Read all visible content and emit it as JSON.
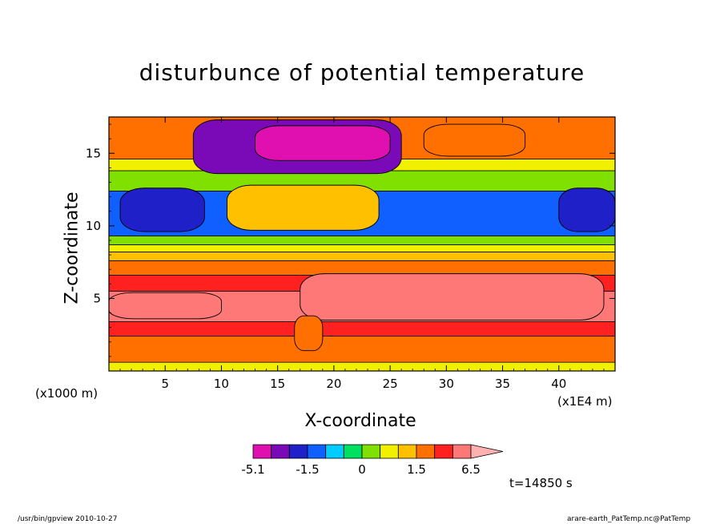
{
  "chart_data": {
    "type": "heatmap",
    "title": "disturbunce of potential temperature",
    "xlabel": "X-coordinate",
    "ylabel": "Z-coordinate",
    "x_unit_label": "(x1E4 m)",
    "y_unit_label": "(x1000 m)",
    "xlim": [
      0,
      45
    ],
    "ylim": [
      0,
      17.5
    ],
    "x_ticks": [
      "5",
      "10",
      "15",
      "20",
      "25",
      "30",
      "35",
      "40"
    ],
    "y_ticks": [
      "5",
      "10",
      "15"
    ],
    "x_tick_values": [
      5,
      10,
      15,
      20,
      25,
      30,
      35,
      40
    ],
    "y_tick_values": [
      5,
      10,
      15
    ],
    "colorbar": {
      "labels": [
        "-5.1",
        "-1.5",
        "0",
        "1.5",
        "6.5"
      ],
      "label_values": [
        -5.1,
        -1.5,
        0,
        1.5,
        6.5
      ],
      "levels": [
        -5.1,
        -3.6,
        -2.5,
        -1.5,
        -1.0,
        -0.5,
        0,
        0.5,
        1.0,
        1.5,
        3.0,
        4.8,
        6.5
      ],
      "colors": [
        "#e010b0",
        "#7a0ab8",
        "#2020c8",
        "#1060ff",
        "#00ccff",
        "#00e060",
        "#80e000",
        "#f0f000",
        "#ffc000",
        "#ff7000",
        "#ff2020",
        "#ff7878",
        "#ffb0b0"
      ],
      "extend": "max"
    },
    "bands": [
      {
        "z0": 0,
        "z1": 0.6,
        "value": 0.7
      },
      {
        "z0": 0.6,
        "z1": 2.4,
        "value": 2.2
      },
      {
        "z0": 2.4,
        "z1": 3.4,
        "value": 3.8
      },
      {
        "z0": 3.4,
        "z1": 5.5,
        "value": 5.2
      },
      {
        "z0": 5.5,
        "z1": 6.6,
        "value": 3.8
      },
      {
        "z0": 6.6,
        "z1": 7.6,
        "value": 2.2
      },
      {
        "z0": 7.6,
        "z1": 8.2,
        "value": 1.2
      },
      {
        "z0": 8.2,
        "z1": 8.7,
        "value": 0.7
      },
      {
        "z0": 8.7,
        "z1": 9.3,
        "value": 0.2
      },
      {
        "z0": 9.3,
        "z1": 12.4,
        "value": -1.3
      },
      {
        "z0": 12.4,
        "z1": 13.8,
        "value": 0.2
      },
      {
        "z0": 13.8,
        "z1": 14.6,
        "value": 0.7
      },
      {
        "z0": 14.6,
        "z1": 17.5,
        "value": 2.2
      }
    ],
    "features": [
      {
        "x": [
          7.5,
          26
        ],
        "z": [
          13.6,
          17.3
        ],
        "value": -3.1
      },
      {
        "x": [
          13,
          25
        ],
        "z": [
          14.5,
          16.9
        ],
        "value": -5.0
      },
      {
        "x": [
          10.5,
          24
        ],
        "z": [
          9.7,
          12.8
        ],
        "value": 1.2
      },
      {
        "x": [
          1,
          8.5
        ],
        "z": [
          9.6,
          12.6
        ],
        "value": -2.0
      },
      {
        "x": [
          40,
          45
        ],
        "z": [
          9.6,
          12.6
        ],
        "value": -2.0
      },
      {
        "x": [
          28,
          37
        ],
        "z": [
          14.8,
          17.0
        ],
        "value": 2.2
      },
      {
        "x": [
          17,
          44
        ],
        "z": [
          3.5,
          6.7
        ],
        "value": 5.6
      },
      {
        "x": [
          0,
          10
        ],
        "z": [
          3.6,
          5.4
        ],
        "value": 5.6
      },
      {
        "x": [
          16.5,
          19
        ],
        "z": [
          1.4,
          3.8
        ],
        "value": 2.2
      }
    ]
  },
  "time_label": "t=14850 s",
  "footer_left": "/usr/bin/gpview   2010-10-27",
  "footer_right": "arare-earth_PatTemp.nc@PatTemp"
}
